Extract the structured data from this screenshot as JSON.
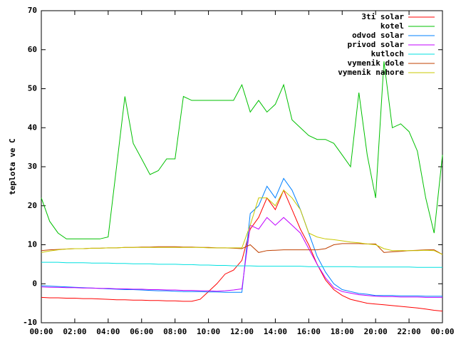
{
  "chart_data": {
    "type": "line",
    "ylabel": "teplota ve C",
    "xlim": [
      0,
      24
    ],
    "ylim": [
      -10,
      70
    ],
    "xticks": [
      {
        "value": 0,
        "label": "00:00"
      },
      {
        "value": 2,
        "label": "02:00"
      },
      {
        "value": 4,
        "label": "04:00"
      },
      {
        "value": 6,
        "label": "06:00"
      },
      {
        "value": 8,
        "label": "08:00"
      },
      {
        "value": 10,
        "label": "10:00"
      },
      {
        "value": 12,
        "label": "12:00"
      },
      {
        "value": 14,
        "label": "14:00"
      },
      {
        "value": 16,
        "label": "16:00"
      },
      {
        "value": 18,
        "label": "18:00"
      },
      {
        "value": 20,
        "label": "20:00"
      },
      {
        "value": 22,
        "label": "22:00"
      },
      {
        "value": 24,
        "label": "00:00"
      }
    ],
    "yticks": [
      -10,
      0,
      10,
      20,
      30,
      40,
      50,
      60,
      70
    ],
    "grid": false,
    "legend": "top-right",
    "x": [
      0,
      0.5,
      1,
      1.5,
      2,
      2.5,
      3,
      3.5,
      4,
      4.5,
      5,
      5.5,
      6,
      6.5,
      7,
      7.5,
      8,
      8.5,
      9,
      9.5,
      10,
      10.5,
      11,
      11.5,
      12,
      12.5,
      13,
      13.5,
      14,
      14.5,
      15,
      15.5,
      16,
      16.5,
      17,
      17.5,
      18,
      18.5,
      19,
      19.5,
      20,
      20.5,
      21,
      21.5,
      22,
      22.5,
      23,
      23.5,
      24
    ],
    "series": [
      {
        "name": "3ti solar",
        "color": "#ff0000",
        "values": [
          -3.5,
          -3.6,
          -3.6,
          -3.7,
          -3.7,
          -3.8,
          -3.8,
          -3.9,
          -4,
          -4.1,
          -4.1,
          -4.2,
          -4.2,
          -4.3,
          -4.3,
          -4.4,
          -4.4,
          -4.5,
          -4.5,
          -4,
          -2,
          0,
          2.5,
          3.5,
          6,
          14,
          17,
          22,
          19,
          24,
          19,
          14,
          10,
          5,
          1,
          -1.5,
          -3,
          -4,
          -4.5,
          -5,
          -5.2,
          -5.4,
          -5.6,
          -5.8,
          -6,
          -6.2,
          -6.5,
          -6.8,
          -7
        ]
      },
      {
        "name": "kotel",
        "color": "#00c000",
        "values": [
          22,
          16,
          13,
          11.5,
          11.5,
          11.5,
          11.5,
          11.5,
          12,
          30,
          48,
          36,
          32,
          28,
          29,
          32,
          32,
          48,
          47,
          47,
          47,
          47,
          47,
          47,
          51,
          44,
          47,
          44,
          46,
          51,
          42,
          40,
          38,
          37,
          37,
          36,
          33,
          30,
          49,
          33,
          22,
          57,
          40,
          41,
          39,
          34,
          22,
          13,
          33
        ]
      },
      {
        "name": "odvod solar",
        "color": "#0080ff",
        "values": [
          -0.5,
          -0.6,
          -0.7,
          -0.8,
          -0.9,
          -1,
          -1.1,
          -1.2,
          -1.3,
          -1.4,
          -1.5,
          -1.5,
          -1.6,
          -1.7,
          -1.8,
          -1.8,
          -1.9,
          -2,
          -2,
          -2,
          -2.1,
          -2.1,
          -2.2,
          -2.2,
          -2.2,
          18,
          20,
          25,
          22,
          27,
          24,
          19,
          13,
          7,
          3,
          0,
          -1.5,
          -2,
          -2.5,
          -2.7,
          -3,
          -3,
          -3,
          -3.1,
          -3.1,
          -3.1,
          -3.2,
          -3.2,
          -3.2
        ]
      },
      {
        "name": "privod solar",
        "color": "#c000ff",
        "values": [
          -0.8,
          -0.9,
          -0.9,
          -1,
          -1,
          -1.1,
          -1.1,
          -1.2,
          -1.2,
          -1.3,
          -1.3,
          -1.4,
          -1.4,
          -1.5,
          -1.5,
          -1.6,
          -1.6,
          -1.7,
          -1.7,
          -1.8,
          -1.8,
          -1.9,
          -1.8,
          -1.6,
          -1.3,
          15,
          14,
          17,
          15,
          17,
          15,
          13,
          9,
          5,
          1.5,
          -1,
          -2,
          -2.4,
          -2.8,
          -3,
          -3.2,
          -3.3,
          -3.3,
          -3.4,
          -3.4,
          -3.4,
          -3.5,
          -3.5,
          -3.5
        ]
      },
      {
        "name": "kutloch",
        "color": "#00e0e0",
        "values": [
          5.5,
          5.5,
          5.5,
          5.4,
          5.4,
          5.4,
          5.3,
          5.3,
          5.3,
          5.2,
          5.2,
          5.1,
          5.1,
          5.1,
          5,
          5,
          5,
          4.9,
          4.9,
          4.8,
          4.8,
          4.7,
          4.7,
          4.6,
          4.6,
          4.6,
          4.5,
          4.5,
          4.5,
          4.5,
          4.5,
          4.5,
          4.4,
          4.4,
          4.4,
          4.4,
          4.4,
          4.4,
          4.3,
          4.3,
          4.3,
          4.3,
          4.3,
          4.3,
          4.3,
          4.2,
          4.2,
          4.2,
          4.2
        ]
      },
      {
        "name": "vymenik dole",
        "color": "#c04000",
        "values": [
          8.5,
          8.7,
          8.8,
          8.9,
          9,
          9,
          9.1,
          9.1,
          9.2,
          9.2,
          9.3,
          9.3,
          9.4,
          9.4,
          9.5,
          9.5,
          9.5,
          9.4,
          9.4,
          9.3,
          9.3,
          9.2,
          9.2,
          9.1,
          9,
          10,
          8,
          8.5,
          8.6,
          8.7,
          8.7,
          8.7,
          8.7,
          8.7,
          9,
          10,
          10.3,
          10.3,
          10.3,
          10.2,
          10.2,
          8,
          8.2,
          8.3,
          8.5,
          8.6,
          8.7,
          8.7,
          7.5
        ]
      },
      {
        "name": "vymenik nahore",
        "color": "#c8c800",
        "values": [
          8,
          8.4,
          8.7,
          8.9,
          9,
          9,
          9.1,
          9.1,
          9.2,
          9.2,
          9.3,
          9.3,
          9.3,
          9.3,
          9.3,
          9.3,
          9.3,
          9.3,
          9.3,
          9.3,
          9.2,
          9.2,
          9.2,
          9.2,
          9.2,
          15,
          22,
          22,
          20,
          24,
          22,
          19,
          13,
          12,
          11.5,
          11.3,
          11,
          10.7,
          10.5,
          10.2,
          10,
          9,
          8.5,
          8.5,
          8.5,
          8.5,
          8.6,
          8.5,
          7.5
        ]
      }
    ]
  }
}
